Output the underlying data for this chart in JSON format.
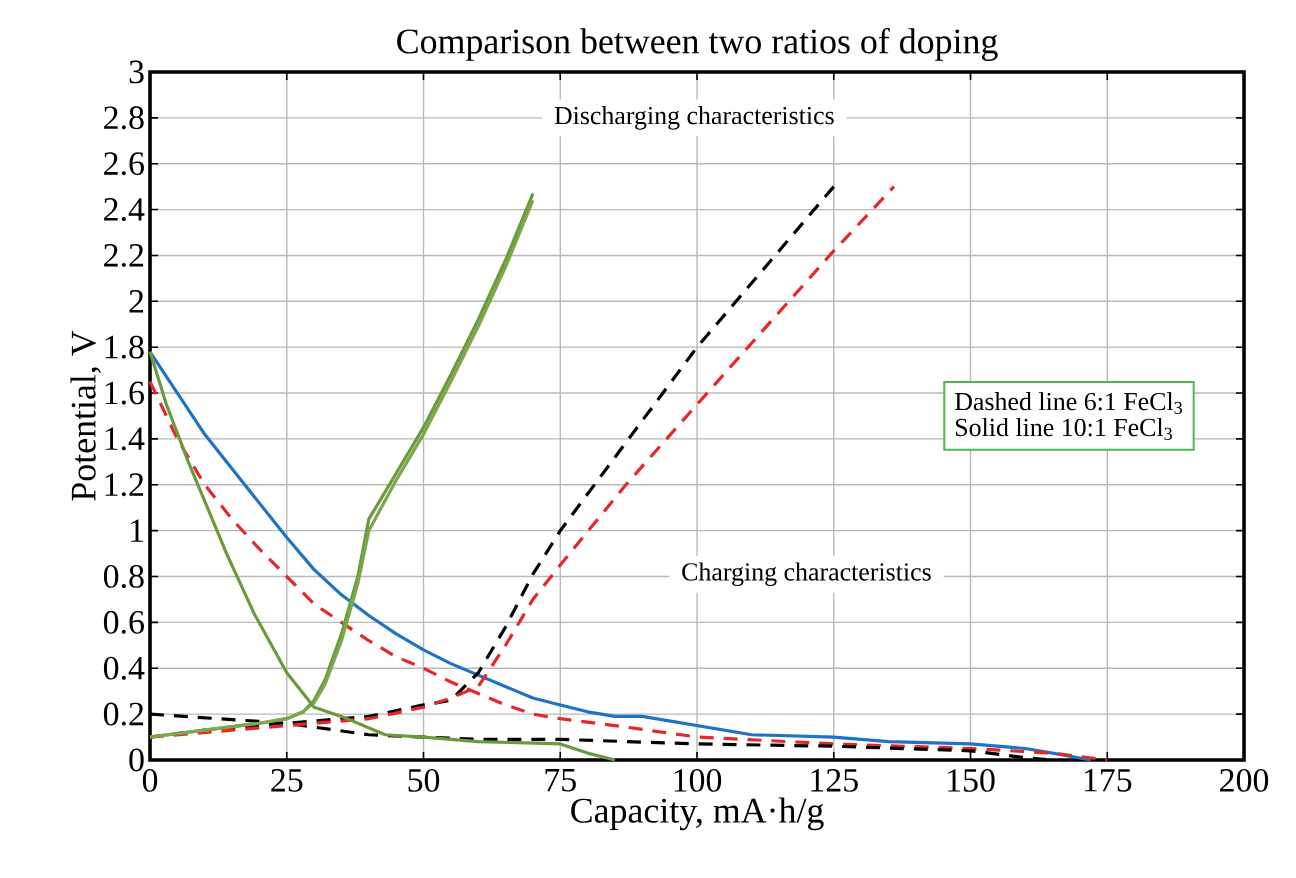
{
  "chart_data": {
    "type": "line",
    "title": "Comparison between two ratios of doping",
    "xlabel": "Capacity, mA·h/g",
    "ylabel": "Potential, V",
    "xlim": [
      0,
      200
    ],
    "ylim": [
      0,
      3
    ],
    "xticks": [
      0,
      25,
      50,
      75,
      100,
      125,
      150,
      175,
      200
    ],
    "yticks": [
      0,
      0.2,
      0.4,
      0.6,
      0.8,
      1,
      1.2,
      1.4,
      1.6,
      1.8,
      2,
      2.2,
      2.4,
      2.6,
      2.8,
      3
    ],
    "grid": true,
    "marker": "none",
    "annotations": [
      "Discharging characteristics",
      "Charging characteristics",
      "Dashed line 6:1 FeCl$_{3}$",
      "Solid line 10:1 FeCl$_{3}$"
    ],
    "series": [
      {
        "color": "#1f72c4",
        "line_style": "solid",
        "x": [
          0,
          5,
          10,
          15,
          20,
          25,
          30,
          35,
          40,
          45,
          50,
          55,
          60,
          65,
          70,
          75,
          80,
          85,
          90,
          95,
          100,
          110,
          125,
          135,
          150,
          160,
          165,
          172
        ],
        "values": [
          1.78,
          1.6,
          1.42,
          1.27,
          1.12,
          0.97,
          0.83,
          0.72,
          0.63,
          0.55,
          0.48,
          0.42,
          0.37,
          0.32,
          0.27,
          0.24,
          0.21,
          0.19,
          0.19,
          0.17,
          0.15,
          0.11,
          0.1,
          0.08,
          0.07,
          0.05,
          0.03,
          0
        ]
      },
      {
        "color": "#e8262a",
        "line_style": "dashed",
        "x": [
          0,
          5,
          10,
          15,
          20,
          25,
          30,
          35,
          40,
          45,
          50,
          55,
          60,
          65,
          70,
          75,
          85,
          100,
          125,
          150,
          165,
          175
        ],
        "values": [
          1.65,
          1.4,
          1.2,
          1.05,
          0.92,
          0.8,
          0.68,
          0.6,
          0.52,
          0.45,
          0.4,
          0.34,
          0.29,
          0.24,
          0.2,
          0.18,
          0.15,
          0.1,
          0.07,
          0.05,
          0.03,
          0
        ]
      },
      {
        "color": "#000000",
        "line_style": "dashed",
        "x": [
          0,
          25,
          40,
          50,
          60,
          75,
          100,
          125,
          150,
          160,
          165
        ],
        "values": [
          0.2,
          0.16,
          0.11,
          0.1,
          0.09,
          0.09,
          0.07,
          0.06,
          0.04,
          0.01,
          0
        ]
      },
      {
        "color": "#000000",
        "line_style": "dashed",
        "x": [
          0,
          10,
          25,
          40,
          50,
          55,
          60,
          65,
          70,
          75,
          100,
          125
        ],
        "values": [
          0.1,
          0.13,
          0.16,
          0.19,
          0.24,
          0.26,
          0.38,
          0.58,
          0.81,
          1.0,
          1.8,
          2.5
        ]
      },
      {
        "color": "#e8262a",
        "line_style": "dashed",
        "x": [
          0,
          25,
          40,
          50,
          55,
          60,
          65,
          70,
          75,
          87,
          100,
          125,
          136
        ],
        "values": [
          0.1,
          0.15,
          0.18,
          0.23,
          0.27,
          0.32,
          0.5,
          0.7,
          0.85,
          1.2,
          1.55,
          2.22,
          2.5
        ]
      },
      {
        "color": "#6b9a3c",
        "line_style": "solid",
        "x": [
          0,
          10,
          20,
          25,
          28,
          30,
          32,
          35,
          38,
          40,
          45,
          50,
          55,
          60,
          65,
          70
        ],
        "values": [
          0.1,
          0.13,
          0.16,
          0.18,
          0.21,
          0.26,
          0.35,
          0.55,
          0.8,
          1.05,
          1.25,
          1.45,
          1.68,
          1.92,
          2.18,
          2.47
        ]
      },
      {
        "color": "#7aa84a",
        "line_style": "solid",
        "x": [
          0,
          10,
          20,
          25,
          28,
          30,
          32,
          35,
          38,
          40,
          45,
          50,
          55,
          60,
          65,
          70
        ],
        "values": [
          0.1,
          0.13,
          0.16,
          0.18,
          0.21,
          0.25,
          0.33,
          0.52,
          0.77,
          1.0,
          1.22,
          1.42,
          1.65,
          1.89,
          2.15,
          2.44
        ]
      },
      {
        "color": "#6b9a3c",
        "line_style": "solid",
        "x": [
          0,
          3,
          7,
          14,
          19,
          25,
          30,
          35,
          43,
          50,
          60,
          75,
          80,
          85
        ],
        "values": [
          1.78,
          1.55,
          1.3,
          0.9,
          0.64,
          0.38,
          0.23,
          0.19,
          0.11,
          0.1,
          0.08,
          0.07,
          0.03,
          0
        ]
      }
    ]
  }
}
